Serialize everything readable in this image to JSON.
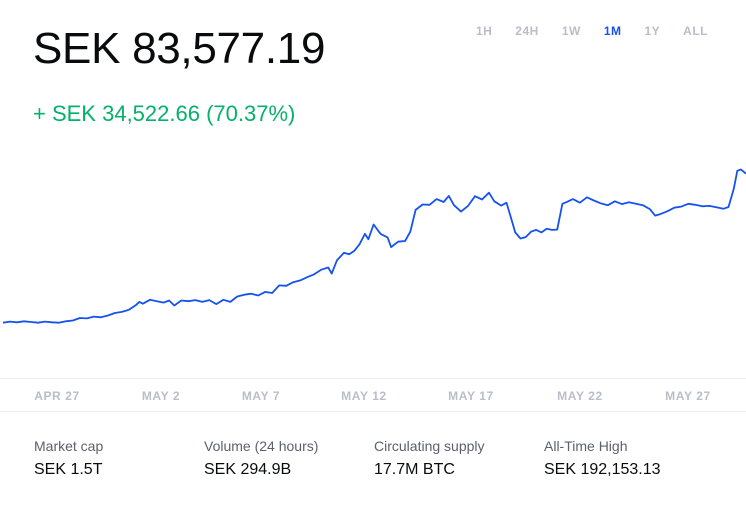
{
  "price": {
    "current": "SEK 83,577.19",
    "change": "+ SEK 34,522.66 (70.37%)"
  },
  "colors": {
    "line": "#1652f0",
    "positive": "#05b169",
    "muted": "#b9bec8",
    "active_range": "#1652f0"
  },
  "ranges": [
    {
      "label": "1H",
      "active": false
    },
    {
      "label": "24H",
      "active": false
    },
    {
      "label": "1W",
      "active": false
    },
    {
      "label": "1M",
      "active": true
    },
    {
      "label": "1Y",
      "active": false
    },
    {
      "label": "ALL",
      "active": false
    }
  ],
  "chart_data": {
    "type": "line",
    "x_ticks": [
      "APR 27",
      "MAY 2",
      "MAY 7",
      "MAY 12",
      "MAY 17",
      "MAY 22",
      "MAY 27"
    ],
    "x_start_day": -1,
    "x_end_day": 31.2,
    "ylim": [
      33000,
      100000
    ],
    "series": [
      {
        "values": [
          [
            -1.0,
            49000
          ],
          [
            -0.6,
            49300
          ],
          [
            -0.2,
            49100
          ],
          [
            0.2,
            49400
          ],
          [
            0.6,
            49200
          ],
          [
            1.0,
            49000
          ],
          [
            1.4,
            49300
          ],
          [
            1.8,
            49100
          ],
          [
            2.2,
            49000
          ],
          [
            2.6,
            49400
          ],
          [
            3.0,
            49600
          ],
          [
            3.4,
            50300
          ],
          [
            3.8,
            50200
          ],
          [
            4.2,
            50700
          ],
          [
            4.6,
            50500
          ],
          [
            5.0,
            51000
          ],
          [
            5.4,
            51700
          ],
          [
            5.8,
            52000
          ],
          [
            6.2,
            52600
          ],
          [
            6.6,
            53900
          ],
          [
            6.8,
            54800
          ],
          [
            7.0,
            54300
          ],
          [
            7.4,
            55400
          ],
          [
            7.8,
            55000
          ],
          [
            8.2,
            54600
          ],
          [
            8.5,
            55200
          ],
          [
            8.8,
            53800
          ],
          [
            9.2,
            55200
          ],
          [
            9.6,
            55000
          ],
          [
            10.0,
            55300
          ],
          [
            10.4,
            54800
          ],
          [
            10.8,
            55300
          ],
          [
            11.2,
            54200
          ],
          [
            11.6,
            55400
          ],
          [
            12.0,
            54800
          ],
          [
            12.4,
            56300
          ],
          [
            12.8,
            56800
          ],
          [
            13.2,
            57100
          ],
          [
            13.6,
            56600
          ],
          [
            14.0,
            57600
          ],
          [
            14.4,
            57300
          ],
          [
            14.8,
            59400
          ],
          [
            15.2,
            59300
          ],
          [
            15.6,
            60300
          ],
          [
            16.0,
            60800
          ],
          [
            16.4,
            61700
          ],
          [
            16.8,
            62500
          ],
          [
            17.2,
            63800
          ],
          [
            17.6,
            64400
          ],
          [
            17.8,
            62700
          ],
          [
            18.1,
            66400
          ],
          [
            18.5,
            68500
          ],
          [
            18.8,
            68100
          ],
          [
            19.1,
            69100
          ],
          [
            19.4,
            70900
          ],
          [
            19.7,
            73800
          ],
          [
            19.9,
            72300
          ],
          [
            20.2,
            76400
          ],
          [
            20.6,
            73800
          ],
          [
            21.0,
            72800
          ],
          [
            21.2,
            70100
          ],
          [
            21.6,
            71600
          ],
          [
            22.0,
            71800
          ],
          [
            22.3,
            74400
          ],
          [
            22.6,
            80500
          ],
          [
            23.0,
            82000
          ],
          [
            23.4,
            81900
          ],
          [
            23.8,
            83500
          ],
          [
            24.2,
            82700
          ],
          [
            24.5,
            84400
          ],
          [
            24.8,
            81800
          ],
          [
            25.2,
            80000
          ],
          [
            25.6,
            81600
          ],
          [
            26.0,
            84300
          ],
          [
            26.4,
            83400
          ],
          [
            26.8,
            85300
          ],
          [
            27.1,
            82900
          ],
          [
            27.5,
            81700
          ],
          [
            27.8,
            82500
          ],
          [
            28.1,
            77600
          ],
          [
            28.3,
            74200
          ],
          [
            28.6,
            72500
          ],
          [
            28.9,
            72900
          ],
          [
            29.2,
            74400
          ],
          [
            29.5,
            74900
          ],
          [
            29.8,
            74200
          ],
          [
            30.1,
            75200
          ],
          [
            30.4,
            74900
          ],
          [
            30.7,
            75000
          ],
          [
            31.0,
            82200
          ],
          [
            31.3,
            82800
          ],
          [
            31.6,
            83500
          ],
          [
            32.0,
            82500
          ],
          [
            32.4,
            84000
          ],
          [
            32.8,
            83100
          ],
          [
            33.2,
            82300
          ],
          [
            33.6,
            81800
          ],
          [
            34.0,
            82900
          ],
          [
            34.4,
            82100
          ],
          [
            34.8,
            82600
          ],
          [
            35.2,
            82200
          ],
          [
            35.6,
            81800
          ],
          [
            36.0,
            80700
          ],
          [
            36.3,
            78900
          ],
          [
            36.6,
            79300
          ],
          [
            37.0,
            80100
          ],
          [
            37.4,
            81100
          ],
          [
            37.8,
            81400
          ],
          [
            38.2,
            82200
          ],
          [
            38.6,
            81900
          ],
          [
            39.0,
            81500
          ],
          [
            39.4,
            81600
          ],
          [
            39.8,
            81200
          ],
          [
            40.2,
            80800
          ],
          [
            40.5,
            81300
          ],
          [
            40.8,
            86400
          ],
          [
            41.0,
            91400
          ],
          [
            41.2,
            91800
          ],
          [
            41.5,
            90600
          ]
        ]
      }
    ]
  },
  "stats": [
    {
      "label": "Market cap",
      "value": "SEK 1.5T"
    },
    {
      "label": "Volume (24 hours)",
      "value": "SEK 294.9B"
    },
    {
      "label": "Circulating supply",
      "value": "17.7M BTC"
    },
    {
      "label": "All-Time High",
      "value": "SEK 192,153.13"
    }
  ]
}
